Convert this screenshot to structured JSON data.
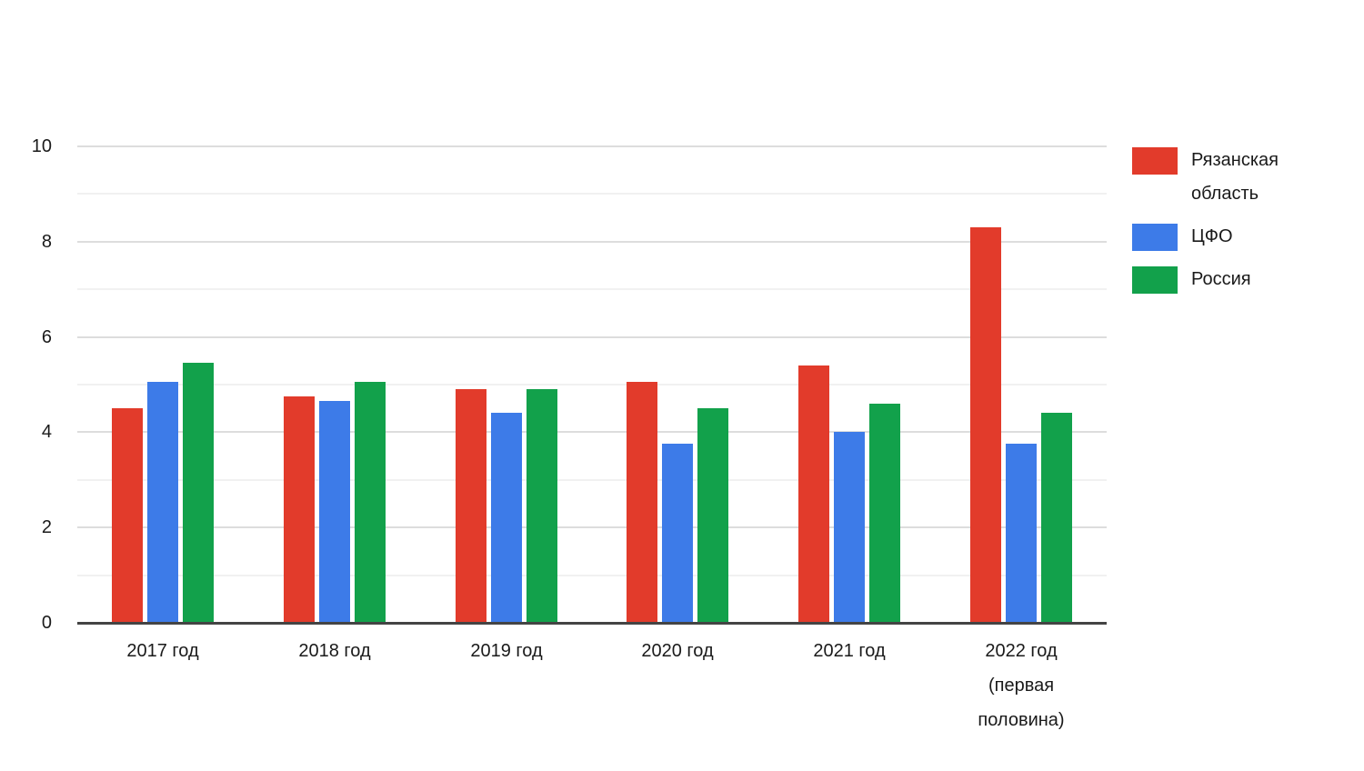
{
  "chart_data": {
    "type": "bar",
    "title": "",
    "xlabel": "",
    "ylabel": "",
    "categories": [
      "2017 год",
      "2018 год",
      "2019 год",
      "2020 год",
      "2021 год",
      "2022 год\n(первая\nполовина)"
    ],
    "series": [
      {
        "name": "Рязанская область",
        "color": "#e23b2b",
        "values": [
          4.5,
          4.75,
          4.9,
          5.05,
          5.4,
          8.3
        ]
      },
      {
        "name": "ЦФО",
        "color": "#3d7be8",
        "values": [
          5.05,
          4.65,
          4.4,
          3.75,
          4.0,
          3.75
        ]
      },
      {
        "name": "Россия",
        "color": "#12a14b",
        "values": [
          5.45,
          5.05,
          4.9,
          4.5,
          4.6,
          4.4
        ]
      }
    ],
    "yticks": [
      0,
      2,
      4,
      6,
      8,
      10
    ],
    "ylim": [
      0,
      10
    ],
    "grid": true,
    "minor_gridlines": true,
    "legend_position": "right",
    "axis_color": "#444444",
    "text_color": "#1a1a1a"
  }
}
